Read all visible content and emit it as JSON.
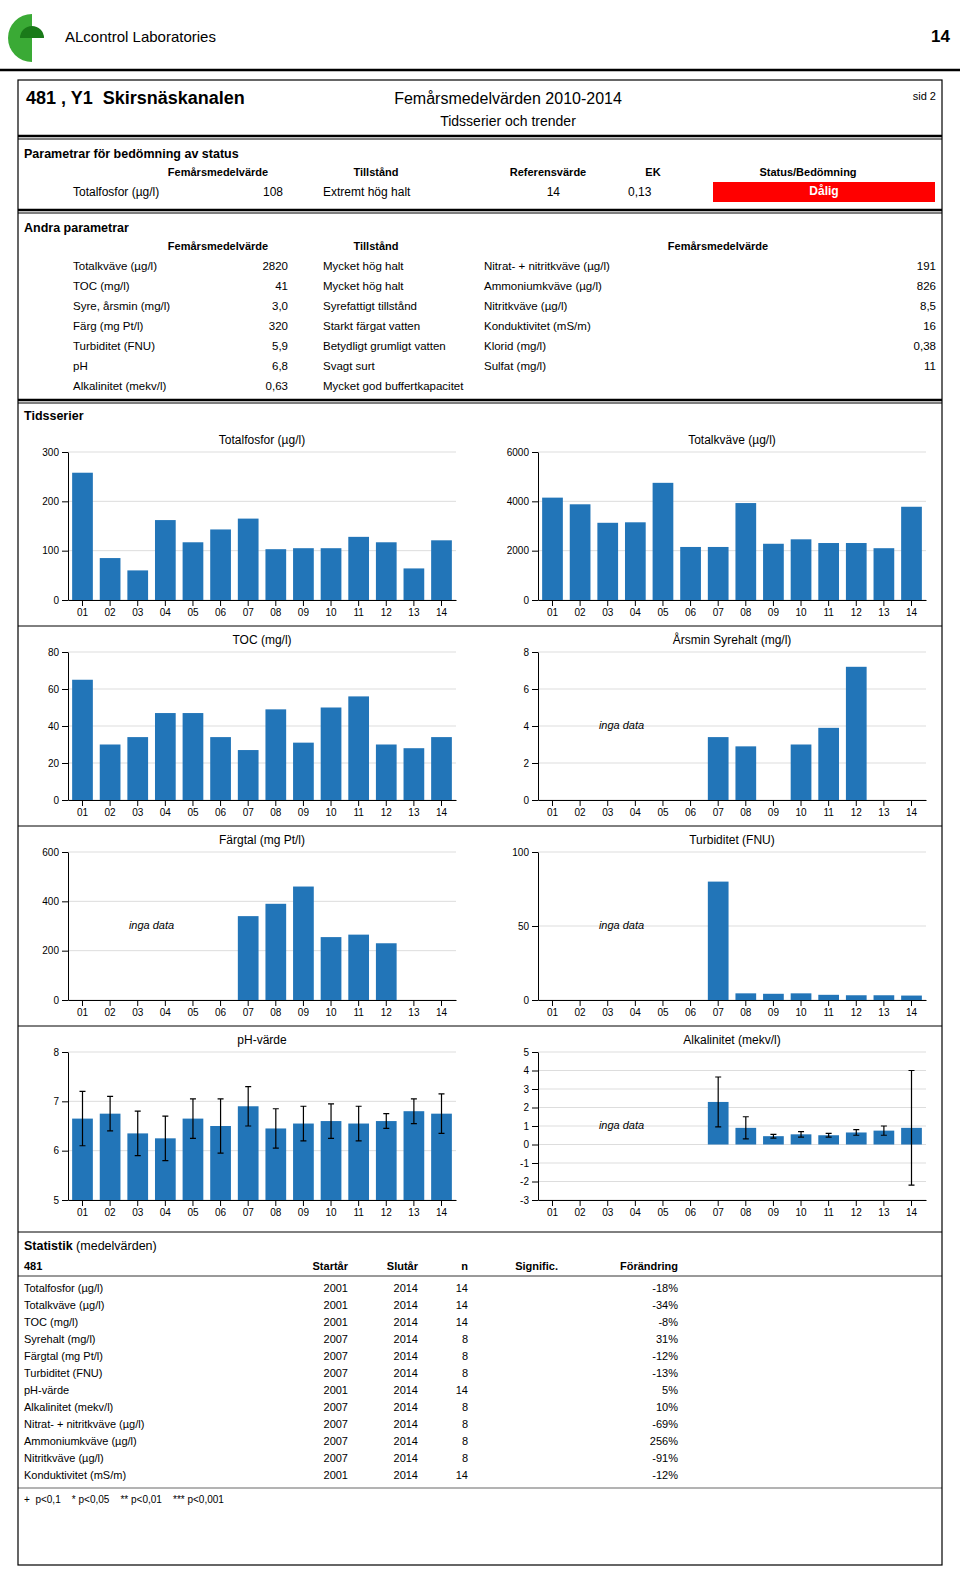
{
  "page": {
    "logo_text": "ALcontrol Laboratories",
    "logo_colors": [
      "#3aaa35",
      "#1a7a19"
    ],
    "page_num": "14",
    "page_title": "481 , Y1  Skirsnäskanalen",
    "report_title": "Femårsmedelvärden 2010-2014",
    "sid": "sid 2",
    "sub_title": "Tidsserier och trender",
    "section1": {
      "title": "Parametrar för bedömning av status",
      "headers": [
        "Femårsmedelvärde",
        "Tillstånd",
        "Referensvärde",
        "EK",
        "Status/Bedömning"
      ],
      "row": [
        "Totalfosfor (µg/l)",
        "108",
        "Extremt hög halt",
        "14",
        "0,13"
      ],
      "status": "Dålig",
      "color": "red"
    },
    "section2": {
      "title": "Andra parametrar",
      "headers": [
        "Femårsmedelvärde",
        "Tillstånd",
        "Femårsmedelvärde"
      ],
      "rows": [
        [
          "Totalkväve (µg/l)",
          "2820",
          "Mycket hög halt",
          "Nitrat- + nitritkväve (µg/l)",
          "191"
        ],
        [
          "TOC (mg/l)",
          "41",
          "Mycket hög halt",
          "Ammoniumkväve (µg/l)",
          "826"
        ],
        [
          "Syre, årsmin (mg/l)",
          "3,0",
          "Syrefattigt tillstånd",
          "Nitritkväve (µg/l)",
          "8,5"
        ],
        [
          "Färg (mg Pt/l)",
          "320",
          "Starkt färgat vatten",
          "Konduktivitet (mS/m)",
          "16"
        ],
        [
          "Turbiditet (FNU)",
          "5,9",
          "Betydligt grumligt vatten",
          "Klorid (mg/l)",
          "0,38"
        ],
        [
          "pH",
          "6,8",
          "Svagt surt",
          "Sulfat (mg/l)",
          "11"
        ],
        [
          "Alkalinitet (mekv/l)",
          "0,63",
          "Mycket god buffertkapacitet"
        ]
      ]
    },
    "timeseries_title": "Tidsserier",
    "stats": {
      "title": "Statistik",
      "subtitle": " (medelvärden)",
      "headers": [
        "481",
        "Startår",
        "Slutår",
        "n",
        "Signific.",
        "Förändring"
      ],
      "rows": [
        [
          "Totalfosfor (µg/l)",
          "2001",
          "2014",
          "14",
          "-18%"
        ],
        [
          "Totalkväve (µg/l)",
          "2001",
          "2014",
          "14",
          "-34%"
        ],
        [
          "TOC (mg/l)",
          "2001",
          "2014",
          "14",
          "-8%"
        ],
        [
          "Syrehalt (mg/l)",
          "2007",
          "2014",
          "8",
          "31%"
        ],
        [
          "Färgtal (mg Pt/l)",
          "2007",
          "2014",
          "8",
          "-12%"
        ],
        [
          "Turbiditet (FNU)",
          "2007",
          "2014",
          "8",
          "-13%"
        ],
        [
          "pH-värde",
          "2001",
          "2014",
          "14",
          "5%"
        ],
        [
          "Alkalinitet (mekv/l)",
          "2007",
          "2014",
          "8",
          "10%"
        ],
        [
          "Nitrat- + nitritkväve (µg/l)",
          "2007",
          "2014",
          "8",
          "-69%"
        ],
        [
          "Ammoniumkväve (µg/l)",
          "2007",
          "2014",
          "8",
          "256%"
        ],
        [
          "Nitritkväve (µg/l)",
          "2007",
          "2014",
          "8",
          "-91%"
        ],
        [
          "Konduktivitet (mS/m)",
          "2001",
          "2014",
          "14",
          "-12%"
        ]
      ],
      "footnote": "+  p<0,1    * p<0,05    ** p<0,01    *** p<0,001"
    }
  },
  "chart_data": [
    {
      "type": "bar",
      "title": "Totalfosfor (µg/l)",
      "categories": [
        "01",
        "02",
        "03",
        "04",
        "05",
        "06",
        "07",
        "08",
        "09",
        "10",
        "11",
        "12",
        "13",
        "14"
      ],
      "values": [
        258,
        85,
        60,
        162,
        117,
        143,
        165,
        103,
        105,
        105,
        128,
        117,
        64,
        121
      ],
      "color": "#2275b8",
      "ylim": [
        0,
        300
      ],
      "yticks": [
        0,
        100,
        200,
        300
      ],
      "grid": true
    },
    {
      "type": "bar",
      "title": "Totalkväve (µg/l)",
      "categories": [
        "01",
        "02",
        "03",
        "04",
        "05",
        "06",
        "07",
        "08",
        "09",
        "10",
        "11",
        "12",
        "13",
        "14"
      ],
      "values": [
        4150,
        3880,
        3130,
        3150,
        4750,
        2150,
        2150,
        3930,
        2280,
        2460,
        2310,
        2310,
        2100,
        3780
      ],
      "color": "#2275b8",
      "ylim": [
        0,
        6000
      ],
      "yticks": [
        0,
        2000,
        4000,
        6000
      ],
      "grid": true
    },
    {
      "type": "bar",
      "title": "TOC (mg/l)",
      "categories": [
        "01",
        "02",
        "03",
        "04",
        "05",
        "06",
        "07",
        "08",
        "09",
        "10",
        "11",
        "12",
        "13",
        "14"
      ],
      "values": [
        65,
        30,
        34,
        47,
        47,
        34,
        27,
        49,
        31,
        50,
        56,
        30,
        28,
        34
      ],
      "color": "#2275b8",
      "ylim": [
        0,
        80
      ],
      "yticks": [
        0,
        20,
        40,
        60,
        80
      ],
      "grid": true
    },
    {
      "type": "bar",
      "title": "Årsmin Syrehalt (mg/l)",
      "categories": [
        "01",
        "02",
        "03",
        "04",
        "05",
        "06",
        "07",
        "08",
        "09",
        "10",
        "11",
        "12",
        "13",
        "14"
      ],
      "values": [
        null,
        null,
        null,
        null,
        null,
        null,
        3.4,
        2.9,
        null,
        3.0,
        3.9,
        7.2,
        null,
        null
      ],
      "color": "#2275b8",
      "ylim": [
        0,
        8
      ],
      "yticks": [
        0,
        2,
        4,
        6,
        8
      ],
      "grid": true,
      "annotation": "inga data"
    },
    {
      "type": "bar",
      "title": "Färgtal (mg Pt/l)",
      "categories": [
        "01",
        "02",
        "03",
        "04",
        "05",
        "06",
        "07",
        "08",
        "09",
        "10",
        "11",
        "12",
        "13",
        "14"
      ],
      "values": [
        null,
        null,
        null,
        null,
        null,
        null,
        340,
        390,
        460,
        255,
        265,
        230,
        null,
        null
      ],
      "color": "#2275b8",
      "ylim": [
        0,
        600
      ],
      "yticks": [
        0,
        200,
        400,
        600
      ],
      "grid": true,
      "annotation": "inga data"
    },
    {
      "type": "bar",
      "title": "Turbiditet (FNU)",
      "categories": [
        "01",
        "02",
        "03",
        "04",
        "05",
        "06",
        "07",
        "08",
        "09",
        "10",
        "11",
        "12",
        "13",
        "14"
      ],
      "values": [
        null,
        null,
        null,
        null,
        null,
        null,
        80,
        4.5,
        4.2,
        4.5,
        3.5,
        3.2,
        3.2,
        3.0
      ],
      "color": "#2275b8",
      "ylim": [
        0,
        100
      ],
      "yticks": [
        0,
        50,
        100
      ],
      "grid": true,
      "annotation": "inga data"
    },
    {
      "type": "bar",
      "title": "pH-värde",
      "categories": [
        "01",
        "02",
        "03",
        "04",
        "05",
        "06",
        "07",
        "08",
        "09",
        "10",
        "11",
        "12",
        "13",
        "14"
      ],
      "values": [
        6.65,
        6.75,
        6.35,
        6.25,
        6.65,
        6.5,
        6.9,
        6.45,
        6.55,
        6.6,
        6.55,
        6.6,
        6.8,
        6.75
      ],
      "errors": [
        0.55,
        0.35,
        0.45,
        0.45,
        0.4,
        0.55,
        0.4,
        0.4,
        0.35,
        0.35,
        0.35,
        0.15,
        0.25,
        0.4
      ],
      "color": "#2275b8",
      "ylim": [
        5,
        8
      ],
      "yticks": [
        5,
        6,
        7,
        8
      ],
      "grid": true
    },
    {
      "type": "bar",
      "title": "Alkalinitet (mekv/l)",
      "categories": [
        "01",
        "02",
        "03",
        "04",
        "05",
        "06",
        "07",
        "08",
        "09",
        "10",
        "11",
        "12",
        "13",
        "14"
      ],
      "values": [
        null,
        null,
        null,
        null,
        null,
        null,
        2.3,
        0.9,
        0.45,
        0.55,
        0.5,
        0.65,
        0.75,
        0.9
      ],
      "errors": [
        null,
        null,
        null,
        null,
        null,
        null,
        1.35,
        0.6,
        0.1,
        0.15,
        0.1,
        0.15,
        0.25,
        3.1
      ],
      "color": "#2275b8",
      "ylim": [
        -3,
        5
      ],
      "yticks": [
        -3,
        -2,
        -1,
        0,
        1,
        2,
        3,
        4,
        5
      ],
      "grid": true,
      "annotation": "inga data"
    }
  ]
}
